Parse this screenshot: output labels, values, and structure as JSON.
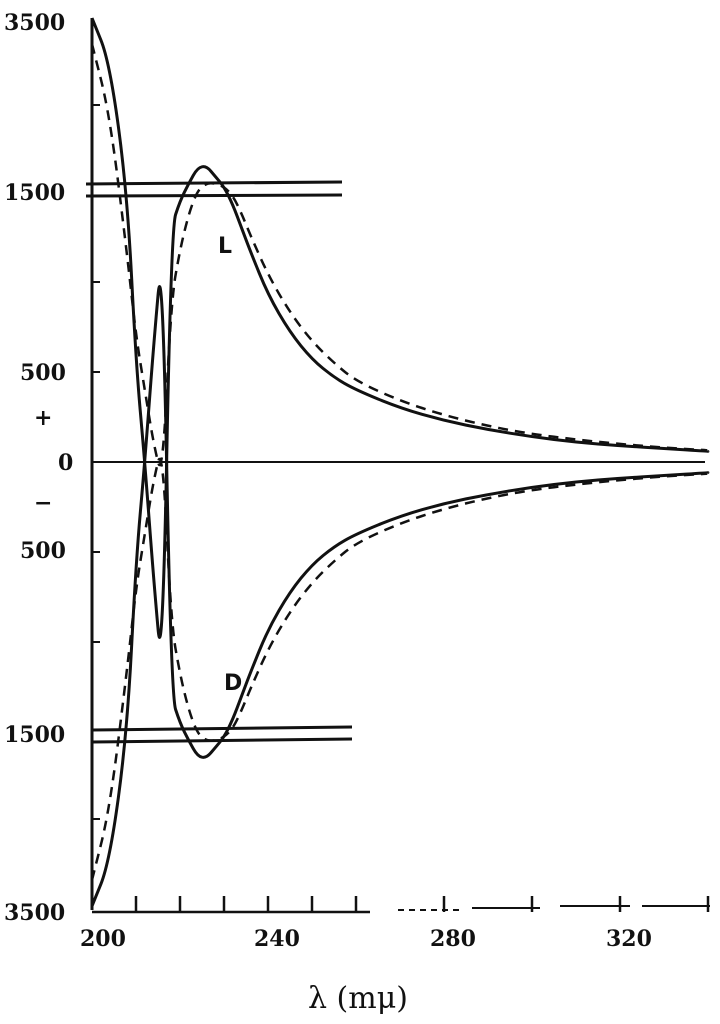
{
  "chart_data": {
    "type": "line",
    "xlabel": "λ (mμ)",
    "ylabel": "",
    "xlim": [
      200,
      340
    ],
    "x_ticks": [
      200,
      240,
      280,
      320
    ],
    "y_tick_labels_upper": [
      "3500",
      "1500",
      "500",
      "+",
      "0"
    ],
    "y_tick_labels_lower": [
      "−",
      "500",
      "1500",
      "3500"
    ],
    "y_note": "axis broken between ±1500 and ±3500",
    "annotations": [
      "L",
      "D"
    ],
    "series": [
      {
        "label": "L",
        "style": "solid",
        "x": [
          200,
          204,
          208,
          210,
          212,
          214,
          216,
          218,
          220,
          222,
          224,
          226,
          228,
          230,
          232,
          234,
          236,
          240,
          245,
          250,
          255,
          260,
          270,
          280,
          290,
          300,
          310,
          320,
          330,
          340
        ],
        "y": [
          3500,
          3000,
          1500,
          550,
          0,
          -650,
          -1200,
          1300,
          1450,
          1600,
          1780,
          1800,
          1680,
          1560,
          1430,
          1300,
          1170,
          930,
          720,
          570,
          470,
          400,
          300,
          230,
          180,
          140,
          110,
          90,
          75,
          60
        ]
      },
      {
        "label": "L",
        "style": "dashed",
        "x": [
          200,
          204,
          208,
          210,
          212,
          214,
          216,
          218,
          220,
          222,
          224,
          226,
          228,
          230,
          232,
          234,
          236,
          240,
          245,
          250,
          255,
          260,
          270,
          280,
          290,
          300,
          310,
          320,
          330,
          340
        ],
        "y": [
          3200,
          2400,
          1150,
          700,
          400,
          100,
          -100,
          900,
          1180,
          1380,
          1520,
          1600,
          1600,
          1560,
          1480,
          1380,
          1260,
          1040,
          830,
          670,
          550,
          450,
          340,
          260,
          200,
          155,
          125,
          100,
          80,
          65
        ]
      },
      {
        "label": "D",
        "style": "solid",
        "x": [
          200,
          204,
          208,
          210,
          212,
          214,
          216,
          218,
          220,
          222,
          224,
          226,
          228,
          230,
          232,
          234,
          236,
          240,
          245,
          250,
          255,
          260,
          270,
          280,
          290,
          300,
          310,
          320,
          330,
          340
        ],
        "y": [
          -3500,
          -3000,
          -1500,
          -550,
          0,
          650,
          1200,
          -1300,
          -1450,
          -1600,
          -1780,
          -1800,
          -1680,
          -1560,
          -1430,
          -1300,
          -1170,
          -930,
          -720,
          -570,
          -470,
          -400,
          -300,
          -230,
          -180,
          -140,
          -110,
          -90,
          -75,
          -60
        ]
      },
      {
        "label": "D",
        "style": "dashed",
        "x": [
          200,
          204,
          208,
          210,
          212,
          214,
          216,
          218,
          220,
          222,
          224,
          226,
          228,
          230,
          232,
          234,
          236,
          240,
          245,
          250,
          255,
          260,
          270,
          280,
          290,
          300,
          310,
          320,
          330,
          340
        ],
        "y": [
          -3200,
          -2400,
          -1150,
          -700,
          -400,
          -100,
          100,
          -900,
          -1180,
          -1380,
          -1520,
          -1600,
          -1600,
          -1560,
          -1480,
          -1380,
          -1260,
          -1040,
          -830,
          -670,
          -550,
          -450,
          -340,
          -260,
          -200,
          -155,
          -125,
          -100,
          -80,
          -65
        ]
      }
    ],
    "grid": false,
    "legend": "none"
  }
}
